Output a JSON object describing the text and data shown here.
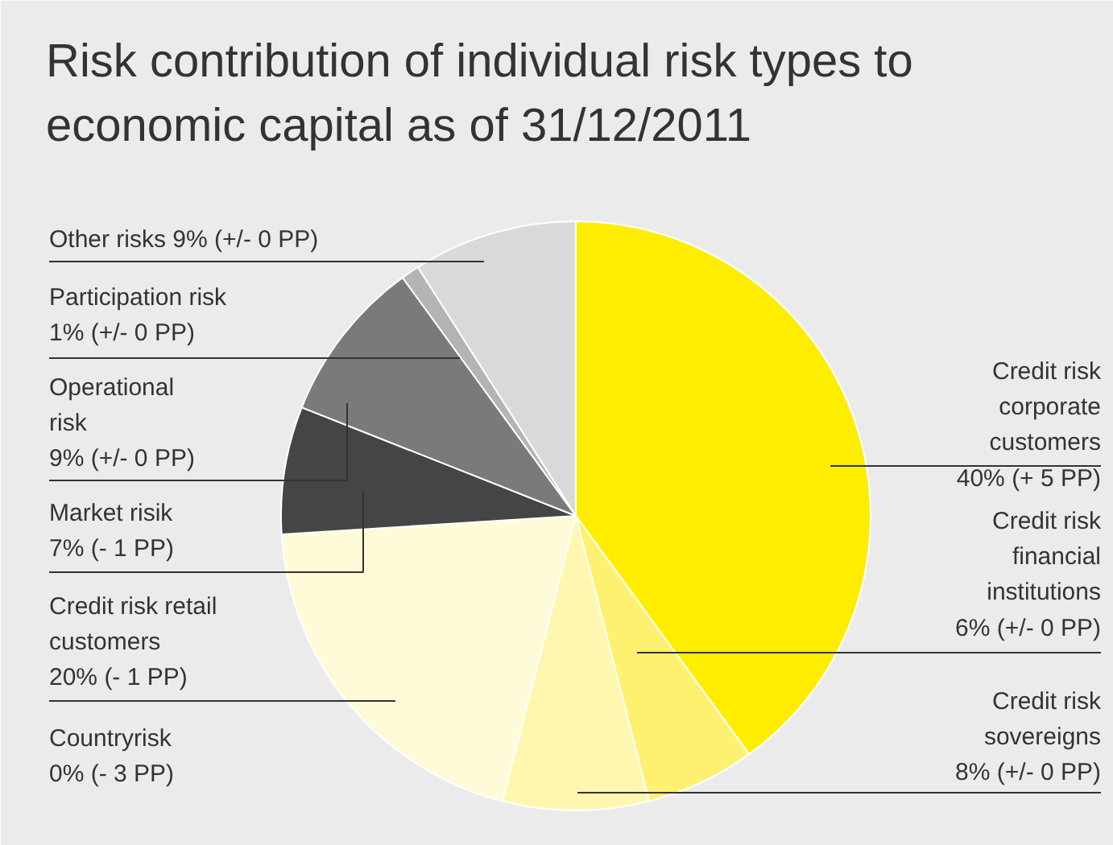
{
  "chart_data": {
    "type": "pie",
    "title": "Risk contribution of individual risk types to economic capital as of 31/12/2011",
    "categories": [
      "Credit risk\ncorporate\ncustomers",
      "Credit risk\nfinancial\ninstitutions",
      "Credit risk\nsovereigns",
      "Credit risk retail\ncustomers",
      "Countryrisk",
      "Market risik",
      "Operational\nrisk",
      "Participation risk",
      "Other risks"
    ],
    "values": [
      40,
      6,
      8,
      20,
      0,
      7,
      9,
      1,
      9
    ],
    "colors": [
      "#ffed00",
      "#fff170",
      "#fff6b0",
      "#fffbd8",
      "#fffbd8",
      "#454545",
      "#7a7a7a",
      "#b4b4b4",
      "#d9d9d9"
    ],
    "value_labels": [
      "40% (+ 5 PP)",
      "6% (+/- 0 PP)",
      "8% (+/- 0 PP)",
      "20% (- 1 PP)",
      "0% (- 3 PP)",
      "7% (- 1 PP)",
      "9% (+/- 0 PP)",
      "1% (+/- 0 PP)",
      "9% (+/- 0 PP)"
    ]
  }
}
